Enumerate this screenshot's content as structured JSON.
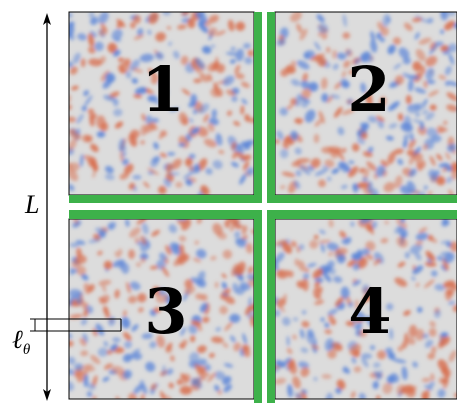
{
  "diagram": {
    "size_label": "L",
    "length_label": "ℓ",
    "length_label_subscript": "θ",
    "quadrants": [
      {
        "label": "1"
      },
      {
        "label": "2"
      },
      {
        "label": "3"
      },
      {
        "label": "4"
      }
    ],
    "colors": {
      "field_positive": "#d86f4f",
      "field_negative": "#5a84d8",
      "field_neutral": "#dcdcdc",
      "boundary_strip": "#3db14a",
      "frame": "#000000"
    }
  }
}
